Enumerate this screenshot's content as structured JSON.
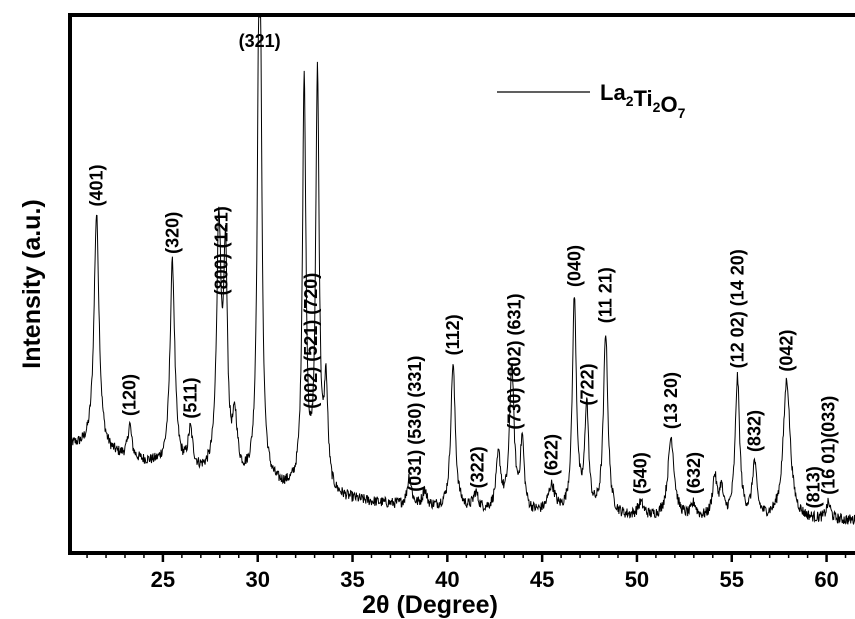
{
  "chart_data": {
    "type": "line",
    "xlabel": "2θ (Degree)",
    "ylabel": "Intensity (a.u.)",
    "xlim": [
      20.1,
      61.5
    ],
    "ylim": [
      0,
      100
    ],
    "x_ticks": [
      "25",
      "30",
      "35",
      "40",
      "45",
      "50",
      "55",
      "60"
    ],
    "x_tick_values": [
      25,
      30,
      35,
      40,
      45,
      50,
      55,
      60
    ],
    "y_ticks_shown": false,
    "grid": false,
    "legend": {
      "placement": "top-right",
      "entries": [
        {
          "label": "La2Ti2O7",
          "base": "La",
          "parts": [
            [
              "La",
              "2"
            ],
            [
              "Ti",
              "2"
            ],
            [
              "O",
              "7"
            ]
          ]
        }
      ]
    },
    "series": [
      {
        "name": "La2Ti2O7",
        "color": "#000000",
        "background": {
          "x": [
            20.1,
            22,
            24,
            26,
            27,
            28,
            29,
            30,
            31,
            32,
            34,
            36,
            38,
            40,
            42,
            44,
            46,
            48,
            50,
            52,
            54,
            56,
            58,
            60,
            61.5
          ],
          "y": [
            20.0,
            18.3,
            16.7,
            15.1,
            14.3,
            13.6,
            13.0,
            12.4,
            11.8,
            11.2,
            10.2,
            9.3,
            8.6,
            8.0,
            7.5,
            7.1,
            6.8,
            6.5,
            6.3,
            6.2,
            6.1,
            6.1,
            6.0,
            6.0,
            6.0
          ]
        },
        "peaks": [
          {
            "x": 21.5,
            "h": 44.0,
            "w": 0.16
          },
          {
            "x": 23.25,
            "h": 6.0,
            "w": 0.12
          },
          {
            "x": 25.5,
            "h": 38.0,
            "w": 0.15
          },
          {
            "x": 26.45,
            "h": 7.0,
            "w": 0.15
          },
          {
            "x": 27.95,
            "h": 46.0,
            "w": 0.14
          },
          {
            "x": 28.3,
            "h": 39.0,
            "w": 0.12
          },
          {
            "x": 28.8,
            "h": 10.0,
            "w": 0.15
          },
          {
            "x": 30.1,
            "h": 120.0,
            "w": 0.11
          },
          {
            "x": 32.45,
            "h": 76.0,
            "w": 0.11
          },
          {
            "x": 33.15,
            "h": 77.0,
            "w": 0.11
          },
          {
            "x": 33.6,
            "h": 19.0,
            "w": 0.12
          },
          {
            "x": 38.0,
            "h": 5.5,
            "w": 0.13
          },
          {
            "x": 38.8,
            "h": 3.0,
            "w": 0.13
          },
          {
            "x": 40.3,
            "h": 27.0,
            "w": 0.14
          },
          {
            "x": 41.5,
            "h": 3.0,
            "w": 0.15
          },
          {
            "x": 42.7,
            "h": 10.0,
            "w": 0.15
          },
          {
            "x": 43.4,
            "h": 27.0,
            "w": 0.14
          },
          {
            "x": 43.95,
            "h": 13.0,
            "w": 0.12
          },
          {
            "x": 45.5,
            "h": 5.0,
            "w": 0.22
          },
          {
            "x": 46.7,
            "h": 40.0,
            "w": 0.13
          },
          {
            "x": 47.35,
            "h": 20.0,
            "w": 0.12
          },
          {
            "x": 48.35,
            "h": 34.0,
            "w": 0.14
          },
          {
            "x": 50.2,
            "h": 2.5,
            "w": 0.2
          },
          {
            "x": 51.8,
            "h": 15.0,
            "w": 0.2
          },
          {
            "x": 53.0,
            "h": 2.5,
            "w": 0.15
          },
          {
            "x": 54.1,
            "h": 7.5,
            "w": 0.14
          },
          {
            "x": 54.45,
            "h": 5.0,
            "w": 0.12
          },
          {
            "x": 55.3,
            "h": 26.0,
            "w": 0.14
          },
          {
            "x": 56.2,
            "h": 10.0,
            "w": 0.14
          },
          {
            "x": 57.9,
            "h": 26.0,
            "w": 0.22
          },
          {
            "x": 60.1,
            "h": 3.0,
            "w": 0.14
          }
        ]
      }
    ],
    "annotations": [
      {
        "text": "(321)",
        "x": 30.1,
        "rotate": false
      },
      {
        "text": "(401)",
        "x": 21.5,
        "rotate": true
      },
      {
        "text": "(120)",
        "x": 23.25,
        "rotate": true
      },
      {
        "text": "(320)",
        "x": 25.5,
        "rotate": true
      },
      {
        "text": "(511)",
        "x": 26.45,
        "rotate": true
      },
      {
        "text": "(800) (121)",
        "x": 28.1,
        "rotate": true
      },
      {
        "text": "(002) (521) (720)",
        "x": 32.8,
        "rotate": true
      },
      {
        "text": "(031) (530) (331)",
        "x": 38.3,
        "rotate": true
      },
      {
        "text": "(112)",
        "x": 40.3,
        "rotate": true
      },
      {
        "text": "(322)",
        "x": 41.6,
        "rotate": true
      },
      {
        "text": "(730) (802) (631)",
        "x": 43.55,
        "rotate": true
      },
      {
        "text": "(622)",
        "x": 45.5,
        "rotate": true
      },
      {
        "text": "(040)",
        "x": 46.7,
        "rotate": true
      },
      {
        "text": "(722)",
        "x": 47.4,
        "rotate": true
      },
      {
        "text": "(11 21)",
        "x": 48.35,
        "rotate": true
      },
      {
        "text": "(540)",
        "x": 50.2,
        "rotate": true
      },
      {
        "text": "(13 20)",
        "x": 51.8,
        "rotate": true
      },
      {
        "text": "(632)",
        "x": 53.0,
        "rotate": true
      },
      {
        "text": "(12 02) (14 20)",
        "x": 55.3,
        "rotate": true
      },
      {
        "text": "(832)",
        "x": 56.2,
        "rotate": true
      },
      {
        "text": "(042)",
        "x": 57.9,
        "rotate": true
      },
      {
        "text": "(813)",
        "x": 59.3,
        "rotate": true
      },
      {
        "text": "(16 01)(033)",
        "x": 60.1,
        "rotate": true
      }
    ]
  }
}
